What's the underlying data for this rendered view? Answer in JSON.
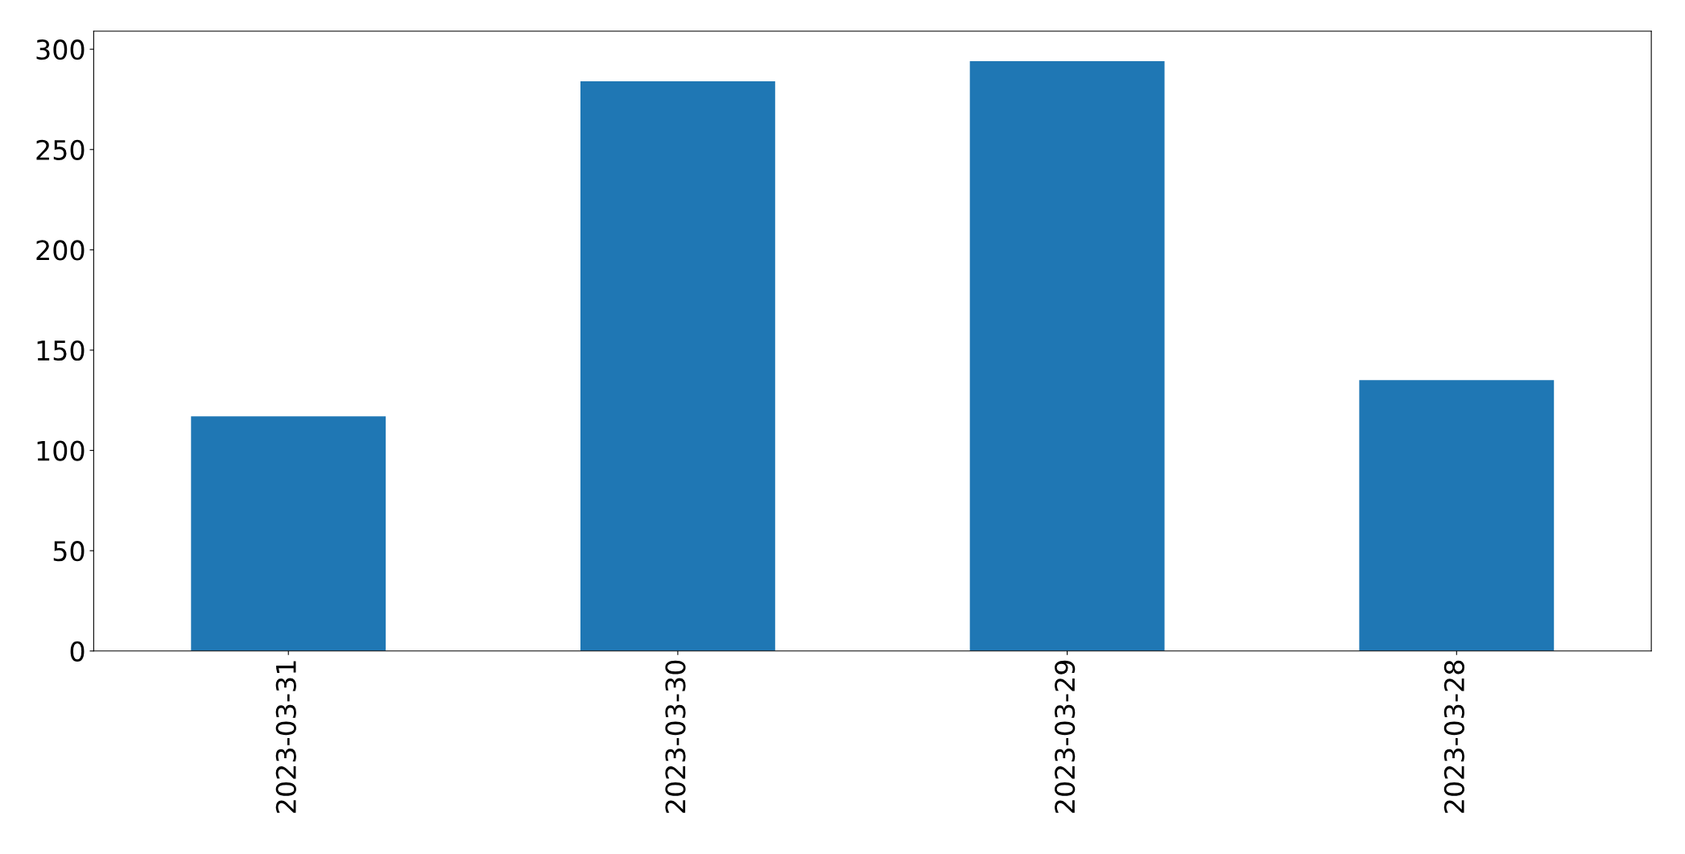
{
  "chart_data": {
    "type": "bar",
    "categories": [
      "2023-03-31",
      "2023-03-30",
      "2023-03-29",
      "2023-03-28"
    ],
    "values": [
      117,
      284,
      294,
      135
    ],
    "color": "#1f77b4",
    "ylim": [
      0,
      309
    ],
    "yticks": [
      0,
      50,
      100,
      150,
      200,
      250,
      300
    ],
    "grid": false,
    "legend": false
  }
}
